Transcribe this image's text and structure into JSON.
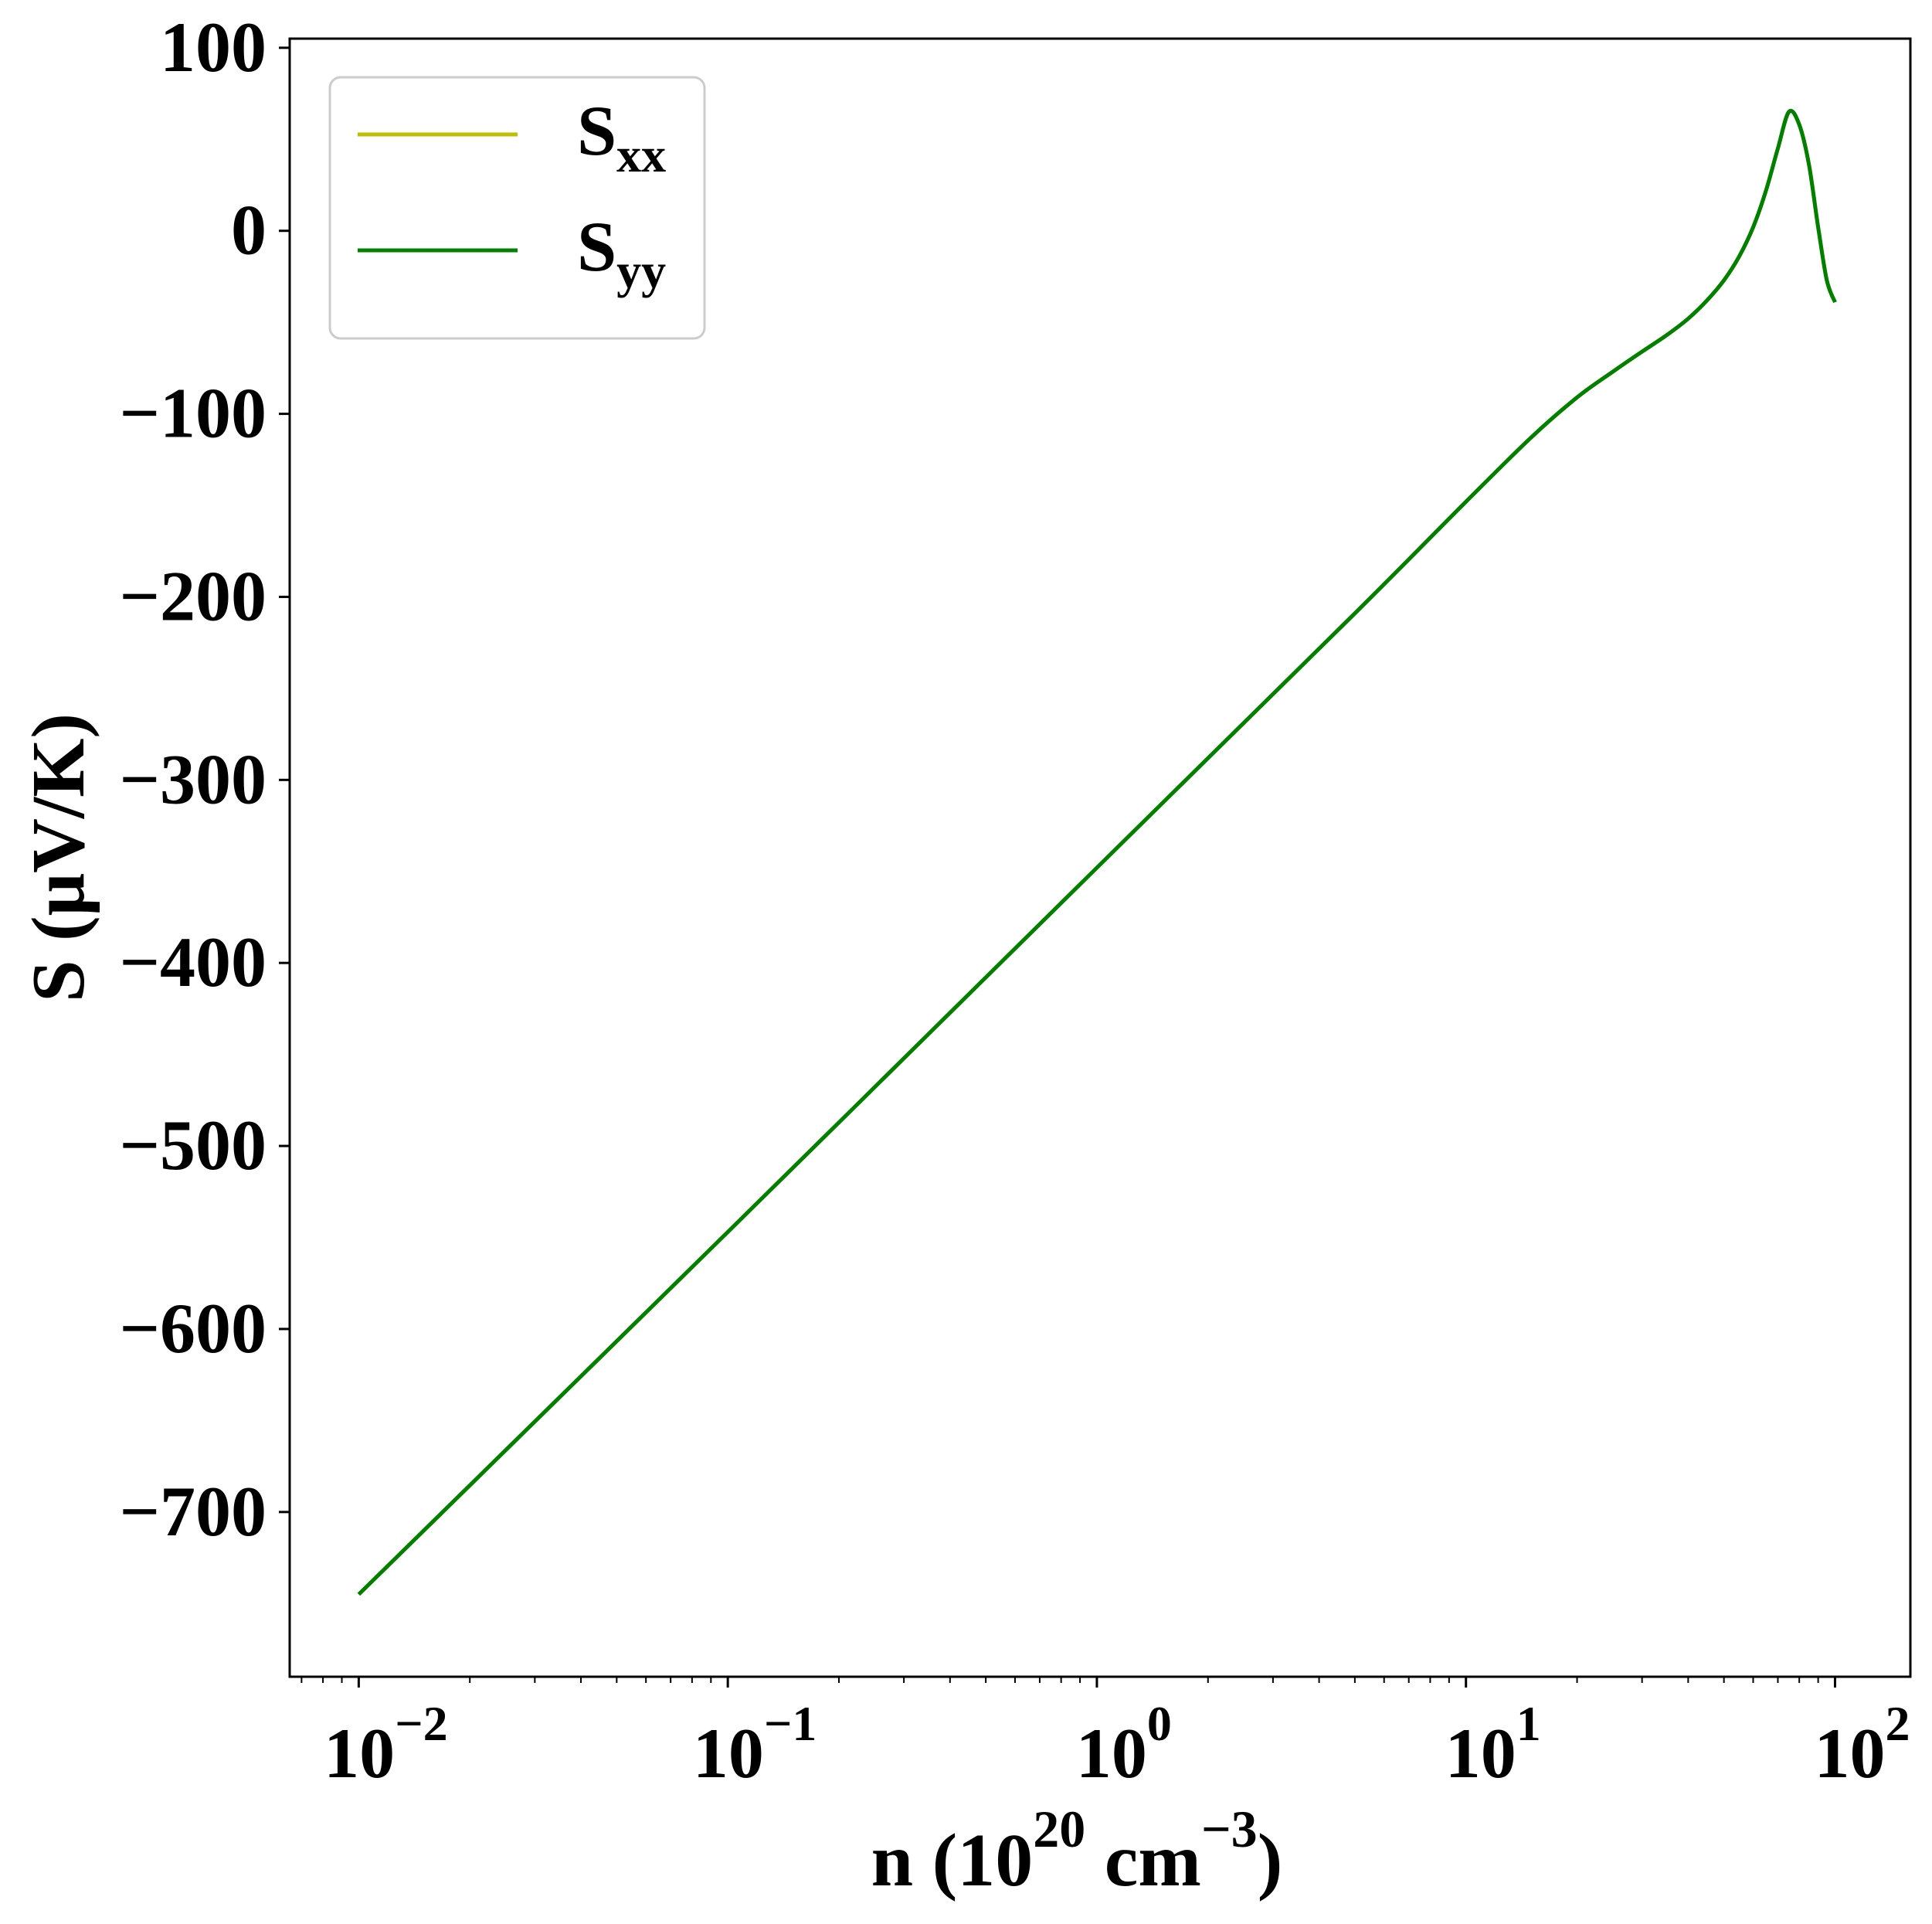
{
  "chart_data": {
    "type": "line",
    "x_scale": "log",
    "xlabel": {
      "base": "n (10",
      "sup1": "20",
      "mid": " cm",
      "sup2": "−3",
      "end": ")"
    },
    "ylabel": "S (μV/K)",
    "xlim": [
      0.0065,
      160
    ],
    "ylim": [
      -790,
      105
    ],
    "x_ticks": [
      {
        "value": 0.01,
        "base": "10",
        "exp": "−2"
      },
      {
        "value": 0.1,
        "base": "10",
        "exp": "−1"
      },
      {
        "value": 1,
        "base": "10",
        "exp": "0"
      },
      {
        "value": 10,
        "base": "10",
        "exp": "1"
      },
      {
        "value": 100,
        "base": "10",
        "exp": "2"
      }
    ],
    "y_ticks": [
      {
        "value": 100,
        "label": "100"
      },
      {
        "value": 0,
        "label": "0"
      },
      {
        "value": -100,
        "label": "−100"
      },
      {
        "value": -200,
        "label": "−200"
      },
      {
        "value": -300,
        "label": "−300"
      },
      {
        "value": -400,
        "label": "−400"
      },
      {
        "value": -500,
        "label": "−500"
      },
      {
        "value": -600,
        "label": "−600"
      },
      {
        "value": -700,
        "label": "−700"
      }
    ],
    "legend": {
      "placement": "top-left"
    },
    "series": [
      {
        "name": {
          "base": "S",
          "sub": "xx"
        },
        "color": "#bfbf00",
        "x": [
          0.01,
          0.1,
          1,
          5,
          10,
          15,
          20,
          25,
          30,
          35,
          40,
          45,
          50,
          55,
          60,
          65,
          70,
          75,
          80,
          85,
          90,
          95,
          100
        ],
        "y": [
          -745,
          -547,
          -348,
          -209,
          -148,
          -113,
          -91,
          -77,
          -66,
          -57,
          -48,
          -38,
          -27,
          -14,
          2,
          22,
          45,
          65,
          58,
          36,
          2,
          -27,
          -39
        ]
      },
      {
        "name": {
          "base": "S",
          "sub": "yy"
        },
        "color": "#008000",
        "x": [
          0.01,
          0.1,
          1,
          5,
          10,
          15,
          20,
          25,
          30,
          35,
          40,
          45,
          50,
          55,
          60,
          65,
          70,
          75,
          80,
          85,
          90,
          95,
          100
        ],
        "y": [
          -745,
          -547,
          -348,
          -209,
          -148,
          -113,
          -91,
          -77,
          -66,
          -57,
          -48,
          -38,
          -27,
          -14,
          2,
          22,
          45,
          65,
          58,
          36,
          2,
          -27,
          -39
        ]
      }
    ]
  }
}
